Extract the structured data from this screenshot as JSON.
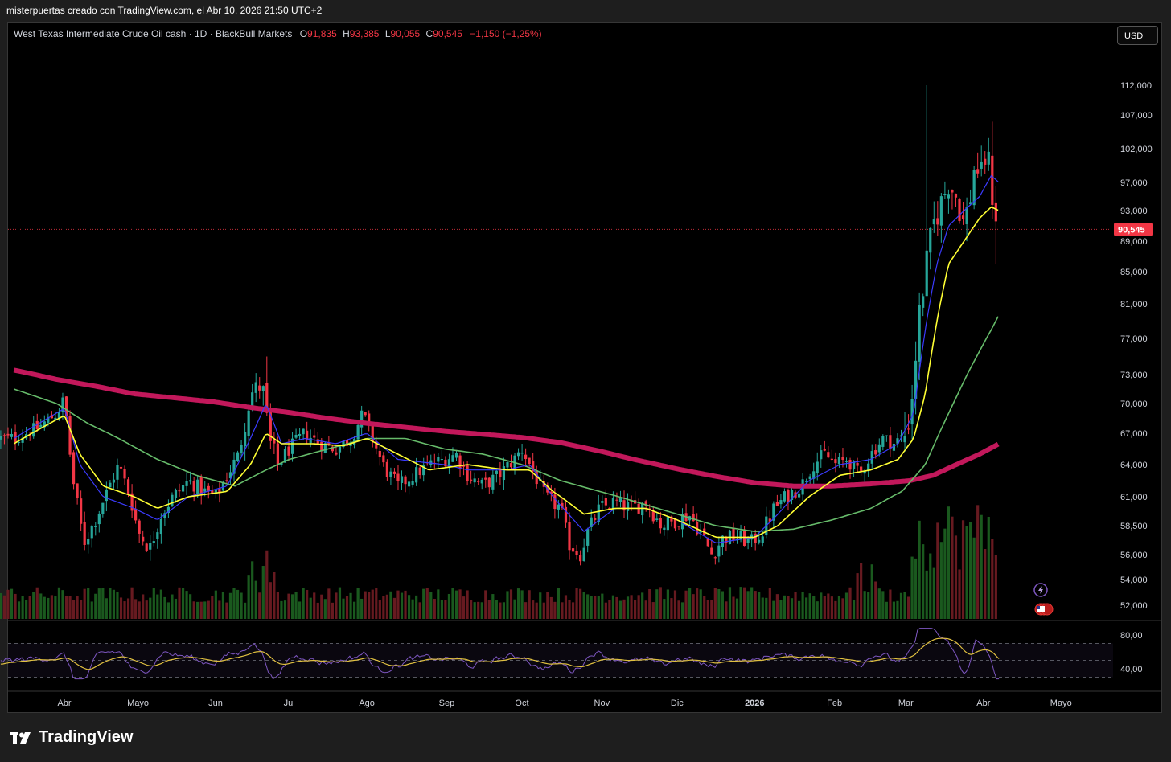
{
  "header": {
    "caption": "misterpuertas creado con TradingView.com, el Abr 10, 2026 21:50 UTC+2"
  },
  "legend": {
    "symbol": "West Texas Intermediate Crude Oil cash · 1D · BlackBull Markets",
    "open_label": "O",
    "open": "91,835",
    "high_label": "H",
    "high": "93,385",
    "low_label": "L",
    "low": "90,055",
    "close_label": "C",
    "close": "90,545",
    "change": "−1,150 (−1,25%)"
  },
  "currency": "USD",
  "footer": {
    "brand": "TradingView"
  },
  "colors": {
    "up": "#26a69a",
    "down": "#f23645",
    "ema_fast": "#3b3bff",
    "ema_yellow": "#ffff33",
    "ema_green": "#66bb6a",
    "ema_long": "#c2185b",
    "rsi": "#7e57c2",
    "rsi_ma": "#e0c040",
    "last_price": "#f23645"
  },
  "chart_data": {
    "type": "candlestick",
    "title": "West Texas Intermediate Crude Oil cash · 1D · BlackBull Markets",
    "last_price": 90.545,
    "last_price_label": "90,545",
    "y_ticks": [
      {
        "value": 112,
        "label": "112,000"
      },
      {
        "value": 107,
        "label": "107,000"
      },
      {
        "value": 102,
        "label": "102,000"
      },
      {
        "value": 97,
        "label": "97,000"
      },
      {
        "value": 93,
        "label": "93,000"
      },
      {
        "value": 89,
        "label": "89,000"
      },
      {
        "value": 85,
        "label": "85,000"
      },
      {
        "value": 81,
        "label": "81,000"
      },
      {
        "value": 77,
        "label": "77,000"
      },
      {
        "value": 73,
        "label": "73,000"
      },
      {
        "value": 70,
        "label": "70,000"
      },
      {
        "value": 67,
        "label": "67,000"
      },
      {
        "value": 64,
        "label": "64,000"
      },
      {
        "value": 61,
        "label": "61,000"
      },
      {
        "value": 58.5,
        "label": "58,500"
      },
      {
        "value": 56,
        "label": "56,000"
      },
      {
        "value": 54,
        "label": "54,000"
      },
      {
        "value": 52,
        "label": "52,000"
      }
    ],
    "x_ticks": [
      {
        "t": 0.1,
        "label": "Abr"
      },
      {
        "t": 1.05,
        "label": "Mayo"
      },
      {
        "t": 2.05,
        "label": "Jun"
      },
      {
        "t": 3.0,
        "label": "Jul"
      },
      {
        "t": 4.0,
        "label": "Ago"
      },
      {
        "t": 5.03,
        "label": "Sep"
      },
      {
        "t": 6.0,
        "label": "Oct"
      },
      {
        "t": 7.03,
        "label": "Nov"
      },
      {
        "t": 8.0,
        "label": "Dic"
      },
      {
        "t": 9.0,
        "label": "2026"
      },
      {
        "t": 10.03,
        "label": "Feb"
      },
      {
        "t": 10.95,
        "label": "Mar"
      },
      {
        "t": 11.95,
        "label": "Abr"
      },
      {
        "t": 12.95,
        "label": "Mayo"
      }
    ],
    "price_anchors": [
      [
        -0.55,
        66.5
      ],
      [
        -0.25,
        67.5
      ],
      [
        0.0,
        69
      ],
      [
        0.1,
        70.5
      ],
      [
        0.2,
        63
      ],
      [
        0.35,
        57
      ],
      [
        0.5,
        59
      ],
      [
        0.65,
        61.5
      ],
      [
        0.8,
        64
      ],
      [
        0.95,
        61
      ],
      [
        1.05,
        58
      ],
      [
        1.2,
        56.5
      ],
      [
        1.35,
        59.5
      ],
      [
        1.5,
        61
      ],
      [
        1.7,
        62.5
      ],
      [
        1.9,
        61.5
      ],
      [
        2.05,
        61
      ],
      [
        2.2,
        63
      ],
      [
        2.35,
        65
      ],
      [
        2.5,
        71
      ],
      [
        2.65,
        72
      ],
      [
        2.75,
        66
      ],
      [
        2.85,
        64
      ],
      [
        3.0,
        65.5
      ],
      [
        3.2,
        67
      ],
      [
        3.4,
        66
      ],
      [
        3.6,
        65.5
      ],
      [
        3.8,
        66.5
      ],
      [
        3.95,
        69
      ],
      [
        4.05,
        67
      ],
      [
        4.2,
        64
      ],
      [
        4.4,
        62
      ],
      [
        4.6,
        63
      ],
      [
        4.8,
        64
      ],
      [
        5.0,
        64.5
      ],
      [
        5.15,
        65
      ],
      [
        5.3,
        63
      ],
      [
        5.5,
        62
      ],
      [
        5.7,
        63
      ],
      [
        5.9,
        64.5
      ],
      [
        6.0,
        65.5
      ],
      [
        6.1,
        64
      ],
      [
        6.3,
        61
      ],
      [
        6.5,
        60
      ],
      [
        6.6,
        57
      ],
      [
        6.75,
        56
      ],
      [
        6.85,
        58
      ],
      [
        7.0,
        60
      ],
      [
        7.2,
        60.5
      ],
      [
        7.4,
        60
      ],
      [
        7.6,
        60.5
      ],
      [
        7.8,
        58.5
      ],
      [
        8.0,
        59
      ],
      [
        8.15,
        59.5
      ],
      [
        8.3,
        58
      ],
      [
        8.45,
        56
      ],
      [
        8.6,
        57.5
      ],
      [
        8.8,
        57.5
      ],
      [
        8.95,
        57
      ],
      [
        9.1,
        58
      ],
      [
        9.25,
        60
      ],
      [
        9.4,
        61
      ],
      [
        9.6,
        62
      ],
      [
        9.75,
        64
      ],
      [
        9.9,
        65
      ],
      [
        10.05,
        64
      ],
      [
        10.2,
        64.5
      ],
      [
        10.35,
        63
      ],
      [
        10.5,
        65
      ],
      [
        10.65,
        66.5
      ],
      [
        10.8,
        66
      ],
      [
        10.95,
        67
      ],
      [
        11.05,
        72
      ],
      [
        11.1,
        78
      ],
      [
        11.2,
        85
      ],
      [
        11.3,
        91
      ],
      [
        11.4,
        94
      ],
      [
        11.5,
        97
      ],
      [
        11.6,
        95
      ],
      [
        11.7,
        91
      ],
      [
        11.8,
        96
      ],
      [
        11.85,
        101
      ],
      [
        11.9,
        97
      ],
      [
        12.0,
        102
      ],
      [
        12.05,
        96
      ],
      [
        12.1,
        93
      ],
      [
        12.15,
        90.5
      ]
    ],
    "ema_fast_anchors": [
      [
        -0.55,
        66.5
      ],
      [
        0.1,
        69.5
      ],
      [
        0.3,
        64
      ],
      [
        0.6,
        61
      ],
      [
        1.0,
        60
      ],
      [
        1.3,
        59
      ],
      [
        1.7,
        61
      ],
      [
        2.2,
        62
      ],
      [
        2.5,
        66.5
      ],
      [
        2.7,
        70
      ],
      [
        2.9,
        66
      ],
      [
        3.2,
        66.5
      ],
      [
        3.6,
        66
      ],
      [
        4.0,
        67
      ],
      [
        4.4,
        64.5
      ],
      [
        5.0,
        64
      ],
      [
        5.3,
        63.5
      ],
      [
        5.8,
        63.5
      ],
      [
        6.1,
        64
      ],
      [
        6.4,
        61
      ],
      [
        6.8,
        58
      ],
      [
        7.2,
        60
      ],
      [
        7.6,
        60
      ],
      [
        8.0,
        59
      ],
      [
        8.5,
        57
      ],
      [
        9.0,
        57.5
      ],
      [
        9.3,
        59.5
      ],
      [
        9.7,
        62.5
      ],
      [
        10.1,
        64
      ],
      [
        10.5,
        64.5
      ],
      [
        10.85,
        66
      ],
      [
        11.05,
        69
      ],
      [
        11.2,
        78
      ],
      [
        11.35,
        86
      ],
      [
        11.5,
        91
      ],
      [
        11.7,
        93
      ],
      [
        11.9,
        95
      ],
      [
        12.05,
        98
      ],
      [
        12.15,
        97
      ]
    ],
    "ema_yellow_anchors": [
      [
        -0.55,
        66
      ],
      [
        0.1,
        68.8
      ],
      [
        0.3,
        65
      ],
      [
        0.6,
        62
      ],
      [
        1.0,
        61
      ],
      [
        1.3,
        60
      ],
      [
        1.7,
        61
      ],
      [
        2.2,
        61.5
      ],
      [
        2.5,
        64
      ],
      [
        2.7,
        67
      ],
      [
        2.9,
        66
      ],
      [
        3.3,
        66
      ],
      [
        3.7,
        65.8
      ],
      [
        4.0,
        66.5
      ],
      [
        4.4,
        65
      ],
      [
        4.8,
        63.5
      ],
      [
        5.3,
        64
      ],
      [
        5.8,
        63.5
      ],
      [
        6.1,
        63.5
      ],
      [
        6.4,
        61.5
      ],
      [
        6.8,
        59.5
      ],
      [
        7.2,
        60
      ],
      [
        7.6,
        60
      ],
      [
        8.0,
        59
      ],
      [
        8.5,
        57.5
      ],
      [
        9.0,
        57.5
      ],
      [
        9.3,
        58.5
      ],
      [
        9.7,
        61
      ],
      [
        10.1,
        63
      ],
      [
        10.5,
        63.5
      ],
      [
        10.85,
        64.5
      ],
      [
        11.05,
        66.5
      ],
      [
        11.2,
        71
      ],
      [
        11.35,
        79
      ],
      [
        11.5,
        86
      ],
      [
        11.7,
        89
      ],
      [
        11.9,
        92
      ],
      [
        12.05,
        93.5
      ],
      [
        12.15,
        93
      ]
    ],
    "ema_green_anchors": [
      [
        -0.55,
        71.5
      ],
      [
        0.0,
        70
      ],
      [
        0.4,
        68
      ],
      [
        0.8,
        66.5
      ],
      [
        1.3,
        64.5
      ],
      [
        1.8,
        63
      ],
      [
        2.3,
        62
      ],
      [
        2.7,
        63.5
      ],
      [
        3.0,
        64.5
      ],
      [
        3.5,
        65.5
      ],
      [
        4.0,
        66.5
      ],
      [
        4.5,
        66.5
      ],
      [
        5.0,
        65.5
      ],
      [
        5.5,
        65
      ],
      [
        6.0,
        64
      ],
      [
        6.5,
        62.5
      ],
      [
        7.0,
        61.5
      ],
      [
        7.5,
        60.5
      ],
      [
        8.0,
        59.5
      ],
      [
        8.5,
        58.5
      ],
      [
        9.0,
        58
      ],
      [
        9.5,
        58.2
      ],
      [
        10.0,
        59
      ],
      [
        10.5,
        60
      ],
      [
        10.9,
        61.5
      ],
      [
        11.2,
        64
      ],
      [
        11.5,
        69
      ],
      [
        11.8,
        74
      ],
      [
        12.05,
        78
      ],
      [
        12.15,
        79.7
      ]
    ],
    "ema_long_anchors": [
      [
        -0.55,
        73.5
      ],
      [
        0.0,
        72.5
      ],
      [
        0.5,
        71.8
      ],
      [
        1.0,
        71
      ],
      [
        1.5,
        70.6
      ],
      [
        2.0,
        70.2
      ],
      [
        2.5,
        69.6
      ],
      [
        3.0,
        69.1
      ],
      [
        3.5,
        68.5
      ],
      [
        4.0,
        68
      ],
      [
        4.5,
        67.6
      ],
      [
        5.0,
        67.2
      ],
      [
        5.5,
        66.9
      ],
      [
        6.0,
        66.6
      ],
      [
        6.5,
        66.1
      ],
      [
        7.0,
        65.3
      ],
      [
        7.5,
        64.4
      ],
      [
        8.0,
        63.6
      ],
      [
        8.5,
        62.9
      ],
      [
        9.0,
        62.3
      ],
      [
        9.5,
        62
      ],
      [
        10.0,
        62
      ],
      [
        10.5,
        62.2
      ],
      [
        11.0,
        62.5
      ],
      [
        11.3,
        63
      ],
      [
        11.6,
        64
      ],
      [
        11.9,
        65
      ],
      [
        12.15,
        66
      ]
    ],
    "rsi_panel": {
      "levels": [
        {
          "value": 80,
          "label": "80,00"
        },
        {
          "value": 40,
          "label": "40,00"
        }
      ]
    }
  }
}
